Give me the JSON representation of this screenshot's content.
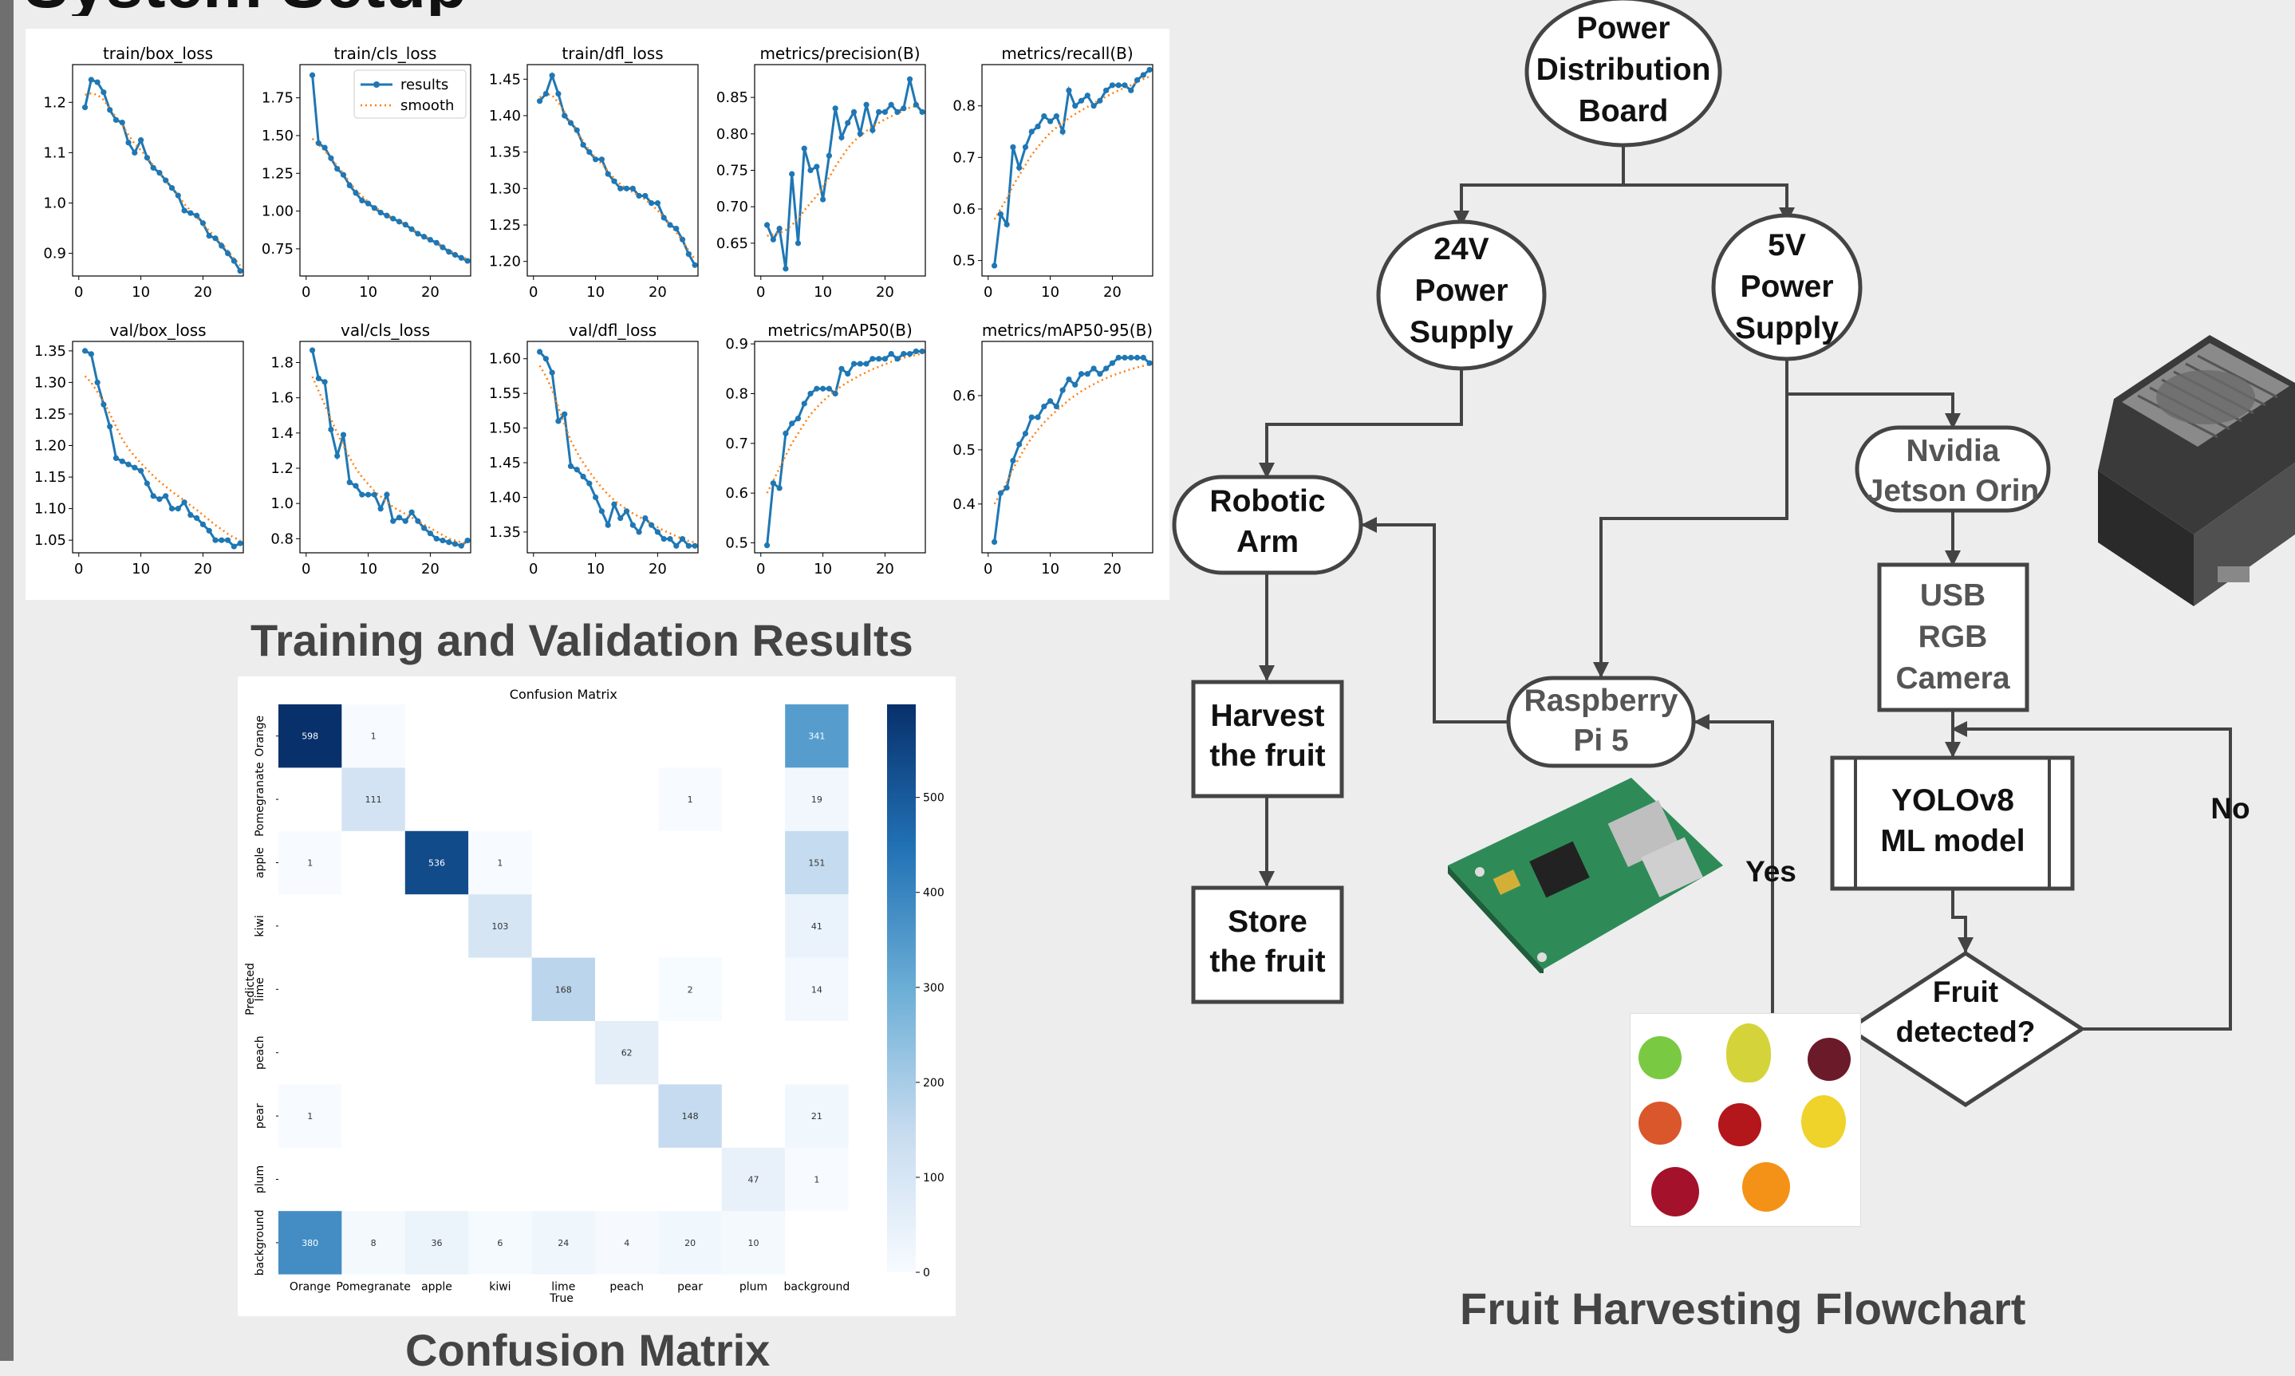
{
  "page": {
    "title_fragment": "System Setup",
    "caption_training": "Training and Validation Results",
    "caption_cm": "Confusion Matrix",
    "caption_flow": "Fruit Harvesting Flowchart"
  },
  "chart_data": [
    {
      "type": "line",
      "title": "train/box_loss",
      "xticks": [
        0,
        10,
        20
      ],
      "xlim": [
        -1,
        26.5
      ],
      "ylim": [
        0.855,
        1.275
      ],
      "yticks": [
        0.9,
        1.0,
        1.1,
        1.2
      ],
      "yticklabels": [
        "0.9",
        "1.0",
        "1.1",
        "1.2"
      ],
      "series": [
        {
          "name": "results",
          "values": [
            1.19,
            1.245,
            1.24,
            1.22,
            1.185,
            1.165,
            1.16,
            1.12,
            1.1,
            1.125,
            1.09,
            1.07,
            1.06,
            1.045,
            1.03,
            1.015,
            0.985,
            0.98,
            0.975,
            0.96,
            0.935,
            0.93,
            0.915,
            0.9,
            0.885,
            0.865
          ]
        },
        {
          "name": "smooth",
          "values": [
            1.215,
            1.218,
            1.215,
            1.205,
            1.188,
            1.17,
            1.155,
            1.135,
            1.118,
            1.105,
            1.09,
            1.075,
            1.06,
            1.045,
            1.03,
            1.015,
            0.998,
            0.985,
            0.972,
            0.958,
            0.945,
            0.932,
            0.92,
            0.905,
            0.89,
            0.876
          ]
        }
      ]
    },
    {
      "type": "line",
      "title": "train/cls_loss",
      "xticks": [
        0,
        10,
        20
      ],
      "xlim": [
        -1,
        26.5
      ],
      "ylim": [
        0.57,
        1.97
      ],
      "yticks": [
        0.75,
        1.0,
        1.25,
        1.5,
        1.75
      ],
      "yticklabels": [
        "0.75",
        "1.00",
        "1.25",
        "1.50",
        "1.75"
      ],
      "legend": {
        "position": "top-right",
        "labels": [
          "results",
          "smooth"
        ]
      },
      "series": [
        {
          "name": "results",
          "values": [
            1.9,
            1.45,
            1.42,
            1.35,
            1.28,
            1.24,
            1.17,
            1.12,
            1.07,
            1.05,
            1.02,
            0.99,
            0.97,
            0.95,
            0.93,
            0.91,
            0.88,
            0.85,
            0.83,
            0.81,
            0.79,
            0.76,
            0.73,
            0.71,
            0.69,
            0.67
          ]
        },
        {
          "name": "smooth",
          "values": [
            1.48,
            1.44,
            1.4,
            1.35,
            1.3,
            1.25,
            1.19,
            1.14,
            1.1,
            1.06,
            1.03,
            1.0,
            0.98,
            0.95,
            0.93,
            0.91,
            0.88,
            0.86,
            0.84,
            0.81,
            0.79,
            0.77,
            0.74,
            0.72,
            0.7,
            0.68
          ]
        }
      ]
    },
    {
      "type": "line",
      "title": "train/dfl_loss",
      "xticks": [
        0,
        10,
        20
      ],
      "xlim": [
        -1,
        26.5
      ],
      "ylim": [
        1.18,
        1.47
      ],
      "yticks": [
        1.2,
        1.25,
        1.3,
        1.35,
        1.4,
        1.45
      ],
      "yticklabels": [
        "1.20",
        "1.25",
        "1.30",
        "1.35",
        "1.40",
        "1.45"
      ],
      "series": [
        {
          "name": "results",
          "values": [
            1.42,
            1.43,
            1.455,
            1.43,
            1.4,
            1.39,
            1.38,
            1.36,
            1.35,
            1.34,
            1.34,
            1.32,
            1.31,
            1.3,
            1.3,
            1.3,
            1.29,
            1.29,
            1.28,
            1.28,
            1.26,
            1.25,
            1.245,
            1.23,
            1.21,
            1.195
          ]
        },
        {
          "name": "smooth",
          "values": [
            1.425,
            1.43,
            1.428,
            1.418,
            1.405,
            1.39,
            1.378,
            1.365,
            1.352,
            1.342,
            1.334,
            1.324,
            1.314,
            1.306,
            1.3,
            1.295,
            1.29,
            1.285,
            1.278,
            1.27,
            1.26,
            1.25,
            1.24,
            1.228,
            1.215,
            1.203
          ]
        }
      ]
    },
    {
      "type": "line",
      "title": "metrics/precision(B)",
      "xticks": [
        0,
        10,
        20
      ],
      "xlim": [
        -1,
        26.5
      ],
      "ylim": [
        0.605,
        0.895
      ],
      "yticks": [
        0.65,
        0.7,
        0.75,
        0.8,
        0.85
      ],
      "yticklabels": [
        "0.65",
        "0.70",
        "0.75",
        "0.80",
        "0.85"
      ],
      "series": [
        {
          "name": "results",
          "values": [
            0.675,
            0.655,
            0.67,
            0.615,
            0.745,
            0.65,
            0.78,
            0.75,
            0.755,
            0.71,
            0.77,
            0.835,
            0.795,
            0.815,
            0.83,
            0.8,
            0.84,
            0.805,
            0.83,
            0.83,
            0.84,
            0.83,
            0.835,
            0.875,
            0.84,
            0.83
          ]
        },
        {
          "name": "smooth",
          "values": [
            0.66,
            0.662,
            0.664,
            0.668,
            0.675,
            0.683,
            0.695,
            0.705,
            0.715,
            0.727,
            0.74,
            0.755,
            0.768,
            0.78,
            0.79,
            0.797,
            0.804,
            0.81,
            0.815,
            0.82,
            0.824,
            0.828,
            0.832,
            0.836,
            0.838,
            0.84
          ]
        }
      ]
    },
    {
      "type": "line",
      "title": "metrics/recall(B)",
      "xticks": [
        0,
        10,
        20
      ],
      "xlim": [
        -1,
        26.5
      ],
      "ylim": [
        0.47,
        0.88
      ],
      "yticks": [
        0.5,
        0.6,
        0.7,
        0.8
      ],
      "yticklabels": [
        "0.5",
        "0.6",
        "0.7",
        "0.8"
      ],
      "series": [
        {
          "name": "results",
          "values": [
            0.49,
            0.59,
            0.57,
            0.72,
            0.68,
            0.72,
            0.75,
            0.76,
            0.78,
            0.77,
            0.78,
            0.75,
            0.83,
            0.8,
            0.81,
            0.82,
            0.8,
            0.81,
            0.83,
            0.84,
            0.84,
            0.84,
            0.83,
            0.85,
            0.86,
            0.87
          ]
        },
        {
          "name": "smooth",
          "values": [
            0.58,
            0.6,
            0.62,
            0.645,
            0.665,
            0.685,
            0.705,
            0.72,
            0.735,
            0.748,
            0.758,
            0.767,
            0.776,
            0.784,
            0.791,
            0.798,
            0.805,
            0.812,
            0.818,
            0.824,
            0.83,
            0.835,
            0.84,
            0.846,
            0.852,
            0.857
          ]
        }
      ]
    },
    {
      "type": "line",
      "title": "val/box_loss",
      "xticks": [
        0,
        10,
        20
      ],
      "xlim": [
        -1,
        26.5
      ],
      "ylim": [
        1.03,
        1.365
      ],
      "yticks": [
        1.05,
        1.1,
        1.15,
        1.2,
        1.25,
        1.3,
        1.35
      ],
      "yticklabels": [
        "1.05",
        "1.10",
        "1.15",
        "1.20",
        "1.25",
        "1.30",
        "1.35"
      ],
      "series": [
        {
          "name": "results",
          "values": [
            1.35,
            1.345,
            1.3,
            1.265,
            1.23,
            1.18,
            1.175,
            1.17,
            1.165,
            1.16,
            1.14,
            1.12,
            1.115,
            1.12,
            1.1,
            1.1,
            1.11,
            1.09,
            1.085,
            1.075,
            1.065,
            1.05,
            1.05,
            1.05,
            1.04,
            1.045
          ]
        },
        {
          "name": "smooth",
          "values": [
            1.31,
            1.3,
            1.285,
            1.27,
            1.25,
            1.23,
            1.21,
            1.195,
            1.183,
            1.172,
            1.162,
            1.152,
            1.143,
            1.135,
            1.127,
            1.12,
            1.113,
            1.105,
            1.098,
            1.09,
            1.082,
            1.074,
            1.067,
            1.06,
            1.054,
            1.05
          ]
        }
      ]
    },
    {
      "type": "line",
      "title": "val/cls_loss",
      "xticks": [
        0,
        10,
        20
      ],
      "xlim": [
        -1,
        26.5
      ],
      "ylim": [
        0.72,
        1.92
      ],
      "yticks": [
        0.8,
        1.0,
        1.2,
        1.4,
        1.6,
        1.8
      ],
      "yticklabels": [
        "0.8",
        "1.0",
        "1.2",
        "1.4",
        "1.6",
        "1.8"
      ],
      "series": [
        {
          "name": "results",
          "values": [
            1.87,
            1.71,
            1.69,
            1.42,
            1.27,
            1.39,
            1.12,
            1.1,
            1.05,
            1.05,
            1.05,
            0.97,
            1.05,
            0.9,
            0.92,
            0.9,
            0.95,
            0.9,
            0.86,
            0.83,
            0.8,
            0.79,
            0.78,
            0.77,
            0.76,
            0.79
          ]
        },
        {
          "name": "smooth",
          "values": [
            1.72,
            1.64,
            1.56,
            1.48,
            1.4,
            1.33,
            1.26,
            1.2,
            1.15,
            1.11,
            1.07,
            1.04,
            1.01,
            0.98,
            0.96,
            0.94,
            0.92,
            0.9,
            0.88,
            0.86,
            0.84,
            0.82,
            0.8,
            0.79,
            0.78,
            0.77
          ]
        }
      ]
    },
    {
      "type": "line",
      "title": "val/dfl_loss",
      "xticks": [
        0,
        10,
        20
      ],
      "xlim": [
        -1,
        26.5
      ],
      "ylim": [
        1.32,
        1.625
      ],
      "yticks": [
        1.35,
        1.4,
        1.45,
        1.5,
        1.55,
        1.6
      ],
      "yticklabels": [
        "1.35",
        "1.40",
        "1.45",
        "1.50",
        "1.55",
        "1.60"
      ],
      "series": [
        {
          "name": "results",
          "values": [
            1.61,
            1.6,
            1.58,
            1.51,
            1.52,
            1.445,
            1.44,
            1.43,
            1.42,
            1.4,
            1.38,
            1.36,
            1.39,
            1.37,
            1.38,
            1.36,
            1.35,
            1.37,
            1.36,
            1.35,
            1.34,
            1.34,
            1.33,
            1.34,
            1.33,
            1.33
          ]
        },
        {
          "name": "smooth",
          "values": [
            1.59,
            1.575,
            1.555,
            1.53,
            1.505,
            1.482,
            1.465,
            1.45,
            1.437,
            1.425,
            1.414,
            1.404,
            1.396,
            1.389,
            1.383,
            1.377,
            1.372,
            1.367,
            1.362,
            1.357,
            1.352,
            1.348,
            1.344,
            1.34,
            1.337,
            1.335
          ]
        }
      ]
    },
    {
      "type": "line",
      "title": "metrics/mAP50(B)",
      "xticks": [
        0,
        10,
        20
      ],
      "xlim": [
        -1,
        26.5
      ],
      "ylim": [
        0.48,
        0.905
      ],
      "yticks": [
        0.5,
        0.6,
        0.7,
        0.8,
        0.9
      ],
      "yticklabels": [
        "0.5",
        "0.6",
        "0.7",
        "0.8",
        "0.9"
      ],
      "series": [
        {
          "name": "results",
          "values": [
            0.495,
            0.62,
            0.61,
            0.72,
            0.74,
            0.75,
            0.78,
            0.8,
            0.81,
            0.81,
            0.81,
            0.8,
            0.85,
            0.84,
            0.86,
            0.86,
            0.86,
            0.87,
            0.87,
            0.87,
            0.88,
            0.87,
            0.88,
            0.88,
            0.885,
            0.885
          ]
        },
        {
          "name": "smooth",
          "values": [
            0.6,
            0.625,
            0.65,
            0.675,
            0.7,
            0.72,
            0.74,
            0.758,
            0.772,
            0.785,
            0.796,
            0.806,
            0.815,
            0.823,
            0.83,
            0.837,
            0.843,
            0.849,
            0.854,
            0.859,
            0.864,
            0.868,
            0.872,
            0.875,
            0.878,
            0.88
          ]
        }
      ]
    },
    {
      "type": "line",
      "title": "metrics/mAP50-95(B)",
      "xticks": [
        0,
        10,
        20
      ],
      "xlim": [
        -1,
        26.5
      ],
      "ylim": [
        0.31,
        0.7
      ],
      "yticks": [
        0.4,
        0.5,
        0.6
      ],
      "yticklabels": [
        "0.4",
        "0.5",
        "0.6"
      ],
      "series": [
        {
          "name": "results",
          "values": [
            0.33,
            0.42,
            0.43,
            0.48,
            0.51,
            0.53,
            0.56,
            0.56,
            0.58,
            0.59,
            0.58,
            0.61,
            0.63,
            0.62,
            0.64,
            0.64,
            0.65,
            0.64,
            0.65,
            0.66,
            0.67,
            0.67,
            0.67,
            0.67,
            0.67,
            0.66
          ]
        },
        {
          "name": "smooth",
          "values": [
            0.4,
            0.42,
            0.44,
            0.465,
            0.485,
            0.505,
            0.522,
            0.537,
            0.55,
            0.562,
            0.572,
            0.582,
            0.592,
            0.6,
            0.608,
            0.615,
            0.621,
            0.627,
            0.632,
            0.637,
            0.641,
            0.645,
            0.649,
            0.652,
            0.655,
            0.657
          ]
        }
      ]
    },
    {
      "type": "heatmap",
      "title": "Confusion Matrix",
      "xlabel": "True",
      "ylabel": "Predicted",
      "categories": [
        "Orange",
        "Pomegranate",
        "apple",
        "kiwi",
        "lime",
        "peach",
        "pear",
        "plum",
        "background"
      ],
      "colorbar": {
        "ticks": [
          0,
          100,
          200,
          300,
          400,
          500
        ],
        "max": 598
      },
      "values": [
        [
          598,
          1,
          null,
          null,
          null,
          null,
          null,
          null,
          341
        ],
        [
          null,
          111,
          null,
          null,
          null,
          null,
          1,
          null,
          19
        ],
        [
          1,
          null,
          536,
          1,
          null,
          null,
          null,
          null,
          151
        ],
        [
          null,
          null,
          null,
          103,
          null,
          null,
          null,
          null,
          41
        ],
        [
          null,
          null,
          null,
          null,
          168,
          null,
          2,
          null,
          14
        ],
        [
          null,
          null,
          null,
          null,
          null,
          62,
          null,
          null,
          null
        ],
        [
          1,
          null,
          null,
          null,
          null,
          null,
          148,
          null,
          21
        ],
        [
          null,
          null,
          null,
          null,
          null,
          null,
          null,
          47,
          1
        ],
        [
          380,
          8,
          36,
          6,
          24,
          4,
          20,
          10,
          null
        ]
      ]
    }
  ],
  "flowchart": {
    "nodes": [
      {
        "id": "pdb",
        "lines": [
          "Power",
          "Distribution",
          "Board"
        ]
      },
      {
        "id": "v24",
        "lines": [
          "24V",
          "Power",
          "Supply"
        ]
      },
      {
        "id": "v5",
        "lines": [
          "5V",
          "Power",
          "Supply"
        ]
      },
      {
        "id": "arm",
        "lines": [
          "Robotic",
          "Arm"
        ]
      },
      {
        "id": "jetson",
        "lines": [
          "Nvidia",
          "Jetson Orin"
        ]
      },
      {
        "id": "cam",
        "lines": [
          "USB",
          "RGB",
          "Camera"
        ]
      },
      {
        "id": "yolo",
        "lines": [
          "YOLOv8",
          "ML model"
        ]
      },
      {
        "id": "pi",
        "lines": [
          "Raspberry",
          "Pi 5"
        ]
      },
      {
        "id": "harvest",
        "lines": [
          "Harvest",
          "the fruit"
        ]
      },
      {
        "id": "store",
        "lines": [
          "Store",
          "the fruit"
        ]
      },
      {
        "id": "decision",
        "lines": [
          "Fruit",
          "detected?"
        ]
      }
    ],
    "edge_labels": {
      "yes": "Yes",
      "no": "No"
    }
  },
  "images": {
    "jetson": "jetson-device-icon",
    "pi_board": "raspberry-pi-board-icon",
    "fruits": "fruit-photo-grid"
  },
  "colors": {
    "line": "#1f77b4",
    "smooth": "#ff7f0e",
    "flow_stroke": "#444444",
    "flow_fill": "#ffffff",
    "cm_max": "#08306b",
    "cm_min": "#f7fbff"
  }
}
